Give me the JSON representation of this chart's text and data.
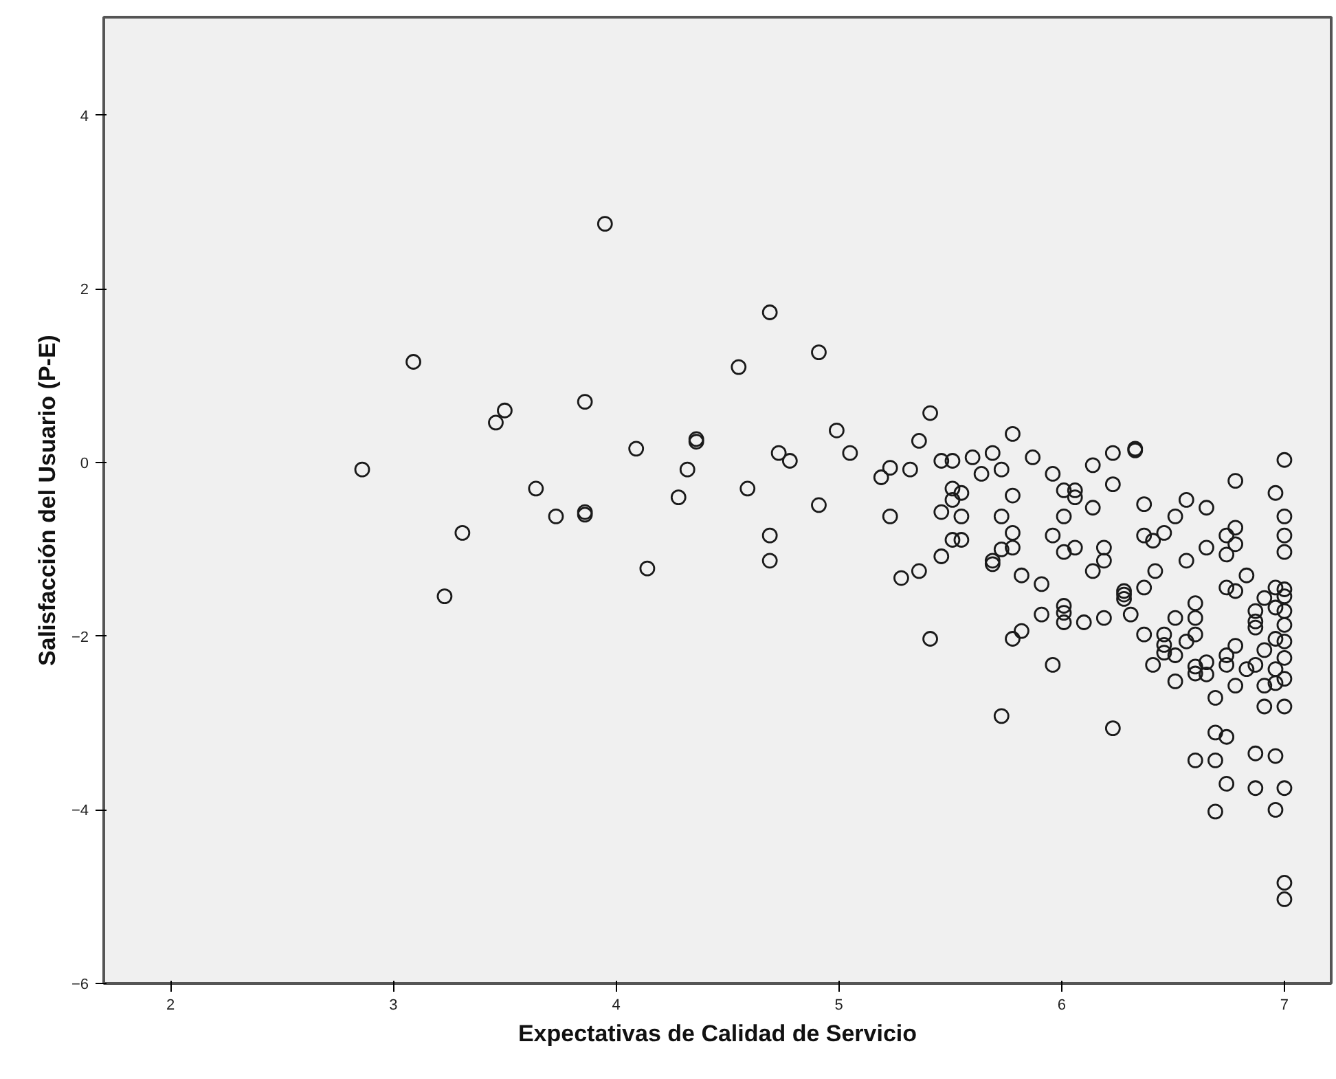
{
  "chart_data": {
    "type": "scatter",
    "xlabel": "Expectativas de Calidad de Servicio",
    "ylabel": "Salisfacción del Usuario (P-E)",
    "xlim": [
      1.7,
      7.21
    ],
    "ylim": [
      -6,
      5.13
    ],
    "xticks": [
      2,
      3,
      4,
      5,
      6,
      7
    ],
    "yticks": [
      -6,
      -4,
      -2,
      0,
      2,
      4
    ],
    "grid": false,
    "marker": "circle",
    "series": [
      {
        "color": "#1a1a1a",
        "x": [
          3.95,
          4.69,
          4.91,
          4.55,
          3.09,
          3.5,
          3.46,
          3.86,
          4.99,
          4.09,
          4.36,
          4.36,
          4.73,
          4.78,
          4.32,
          2.86,
          4.59,
          3.64,
          4.28,
          4.91,
          3.73,
          3.86,
          3.86,
          4.69,
          4.69,
          3.31,
          4.14,
          3.23,
          5.05,
          5.41,
          5.36,
          5.78,
          5.23,
          5.19,
          5.32,
          5.46,
          5.51,
          5.6,
          5.69,
          5.64,
          5.73,
          5.87,
          5.96,
          6.01,
          6.06,
          6.06,
          5.51,
          5.55,
          5.51,
          5.78,
          5.23,
          5.46,
          5.55,
          5.73,
          6.01,
          5.78,
          5.51,
          5.55,
          5.96,
          6.01,
          6.06,
          5.46,
          5.73,
          5.78,
          5.69,
          5.69,
          5.36,
          5.28,
          5.82,
          5.91,
          6.01,
          6.01,
          5.91,
          6.01,
          6.1,
          5.82,
          5.78,
          5.41,
          5.96,
          5.73,
          6.14,
          6.23,
          6.33,
          6.33,
          6.23,
          6.14,
          6.37,
          6.56,
          6.65,
          6.51,
          6.46,
          6.37,
          6.41,
          6.19,
          6.19,
          6.14,
          6.56,
          6.65,
          6.78,
          6.96,
          7.0,
          7.0,
          7.0,
          7.0,
          6.78,
          6.74,
          6.78,
          6.74,
          6.83,
          6.42,
          6.37,
          6.28,
          6.28,
          6.28,
          6.74,
          6.78,
          6.96,
          6.91,
          7.0,
          7.0,
          7.0,
          7.0,
          7.0,
          7.0,
          7.0,
          7.0,
          6.96,
          6.87,
          6.87,
          6.87,
          6.6,
          6.6,
          6.6,
          6.51,
          6.31,
          6.19,
          6.37,
          6.46,
          6.46,
          6.46,
          6.56,
          6.51,
          6.41,
          6.6,
          6.65,
          6.6,
          6.65,
          6.51,
          6.74,
          6.74,
          6.78,
          6.83,
          6.87,
          6.91,
          6.96,
          6.96,
          6.91,
          6.96,
          6.78,
          6.69,
          6.91,
          6.23,
          6.69,
          6.74,
          6.6,
          6.69,
          6.87,
          6.96,
          6.74,
          6.87,
          7.0,
          6.69,
          6.96,
          7.0,
          7.0
        ],
        "values": [
          2.75,
          1.73,
          1.27,
          1.1,
          1.16,
          0.6,
          0.46,
          0.7,
          0.37,
          0.16,
          0.27,
          0.24,
          0.11,
          0.02,
          -0.08,
          -0.08,
          -0.3,
          -0.3,
          -0.4,
          -0.49,
          -0.62,
          -0.57,
          -0.6,
          -0.84,
          -1.13,
          -0.81,
          -1.22,
          -1.54,
          0.11,
          0.57,
          0.25,
          0.33,
          -0.06,
          -0.17,
          -0.08,
          0.02,
          0.02,
          0.06,
          0.11,
          -0.13,
          -0.08,
          0.06,
          -0.13,
          -0.32,
          -0.32,
          -0.4,
          -0.3,
          -0.35,
          -0.43,
          -0.38,
          -0.62,
          -0.57,
          -0.62,
          -0.62,
          -0.62,
          -0.81,
          -0.89,
          -0.89,
          -0.84,
          -1.03,
          -0.98,
          -1.08,
          -1.0,
          -0.98,
          -1.13,
          -1.17,
          -1.25,
          -1.33,
          -1.3,
          -1.4,
          -1.65,
          -1.73,
          -1.75,
          -1.84,
          -1.84,
          -1.94,
          -2.03,
          -2.03,
          -2.33,
          -2.92,
          -0.03,
          0.11,
          0.16,
          0.14,
          -0.25,
          -0.52,
          -0.48,
          -0.43,
          -0.52,
          -0.62,
          -0.81,
          -0.84,
          -0.9,
          -0.98,
          -1.13,
          -1.25,
          -1.13,
          -0.98,
          -0.21,
          -0.35,
          0.03,
          -0.62,
          -0.84,
          -1.03,
          -0.75,
          -0.84,
          -0.94,
          -1.06,
          -1.3,
          -1.25,
          -1.44,
          -1.48,
          -1.52,
          -1.57,
          -1.44,
          -1.48,
          -1.44,
          -1.56,
          -1.46,
          -1.54,
          -1.71,
          -1.87,
          -2.06,
          -2.25,
          -2.49,
          -2.81,
          -1.67,
          -1.71,
          -1.83,
          -1.9,
          -1.62,
          -1.79,
          -1.98,
          -1.79,
          -1.75,
          -1.79,
          -1.98,
          -1.98,
          -2.1,
          -2.19,
          -2.06,
          -2.22,
          -2.33,
          -2.35,
          -2.3,
          -2.43,
          -2.44,
          -2.52,
          -2.22,
          -2.33,
          -2.11,
          -2.38,
          -2.33,
          -2.16,
          -2.03,
          -2.38,
          -2.57,
          -2.54,
          -2.57,
          -2.71,
          -2.81,
          -3.06,
          -3.11,
          -3.16,
          -3.43,
          -3.43,
          -3.35,
          -3.38,
          -3.7,
          -3.75,
          -3.75,
          -4.02,
          -4.0,
          -4.84,
          -5.03
        ]
      }
    ]
  }
}
